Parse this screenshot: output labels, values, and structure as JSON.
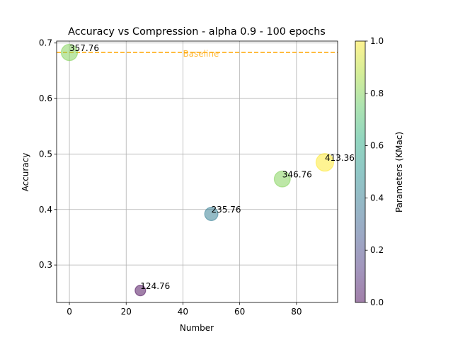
{
  "chart_data": {
    "type": "scatter",
    "title": "Accuracy vs Compression - alpha 0.9 - 100 epochs",
    "xlabel": "Number",
    "ylabel": "Accuracy",
    "xlim": [
      -4.5,
      94.5
    ],
    "ylim": [
      0.2325,
      0.7035
    ],
    "xticks": [
      0,
      20,
      40,
      60,
      80
    ],
    "yticks": [
      0.3,
      0.4,
      0.5,
      0.6,
      0.7
    ],
    "xtick_labels": [
      "0",
      "20",
      "40",
      "60",
      "80"
    ],
    "ytick_labels": [
      "0.3",
      "0.4",
      "0.5",
      "0.6",
      "0.7"
    ],
    "grid": true,
    "colormap": "viridis",
    "point_alpha": 0.5,
    "points": [
      {
        "x": 0,
        "y": 0.683,
        "parameters": 357.76,
        "label": "357.76",
        "color_value": 0.8
      },
      {
        "x": 25,
        "y": 0.254,
        "parameters": 124.76,
        "label": "124.76",
        "color_value": 0.0
      },
      {
        "x": 50,
        "y": 0.392,
        "parameters": 235.76,
        "label": "235.76",
        "color_value": 0.4
      },
      {
        "x": 75,
        "y": 0.455,
        "parameters": 346.76,
        "label": "346.76",
        "color_value": 0.8
      },
      {
        "x": 90,
        "y": 0.485,
        "parameters": 413.36,
        "label": "413.36",
        "color_value": 1.0
      }
    ],
    "baseline": {
      "y": 0.683,
      "label": "Baseline",
      "color": "#ffa500",
      "style": "dashed"
    },
    "colorbar": {
      "label": "Parameters (KMac)",
      "range": [
        0.0,
        1.0
      ],
      "ticks": [
        0.0,
        0.2,
        0.4,
        0.6,
        0.8,
        1.0
      ],
      "tick_labels": [
        "0.0",
        "0.2",
        "0.4",
        "0.6",
        "0.8",
        "1.0"
      ]
    }
  }
}
